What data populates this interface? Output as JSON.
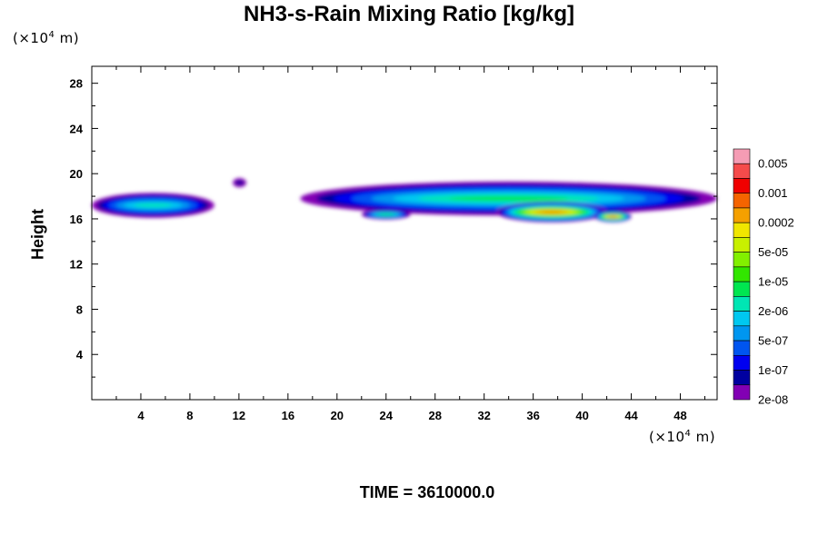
{
  "chart_data": {
    "type": "heatmap",
    "title": "NH3-s-Rain Mixing Ratio [kg/kg]",
    "ylabel": "Height",
    "xlabel": "",
    "y_unit": "(×10",
    "x_unit": "(×10",
    "unit_exp": "4",
    "unit_tail": " m)",
    "time_label": "TIME = 3610000.0",
    "xlim": [
      0,
      51
    ],
    "ylim": [
      0,
      29.5
    ],
    "x_ticks": [
      4,
      8,
      12,
      16,
      20,
      24,
      28,
      32,
      36,
      40,
      44,
      48
    ],
    "y_ticks": [
      4,
      8,
      12,
      16,
      20,
      24,
      28
    ],
    "x_tick_labels": [
      "4",
      "8",
      "12",
      "16",
      "20",
      "24",
      "28",
      "32",
      "36",
      "40",
      "44",
      "48"
    ],
    "y_tick_labels": [
      "4",
      "8",
      "12",
      "16",
      "20",
      "24",
      "28"
    ],
    "colorbar": {
      "colors": [
        "#f59cb4",
        "#f54b4b",
        "#f00000",
        "#f56400",
        "#f5a000",
        "#f0e600",
        "#c8f000",
        "#82f000",
        "#32e600",
        "#00e650",
        "#00e6b4",
        "#00c8f0",
        "#0096f0",
        "#0055f0",
        "#0000f0",
        "#0000a0",
        "#8200b4"
      ],
      "labels": [
        "0.005",
        "0.001",
        "0.0002",
        "5e-05",
        "1e-05",
        "2e-06",
        "5e-07",
        "1e-07",
        "2e-08"
      ]
    },
    "blobs": [
      {
        "x0": 0,
        "x1": 10,
        "yc": 17.2,
        "h": 2.2,
        "peak": 10
      },
      {
        "x0": 11.5,
        "x1": 12.6,
        "yc": 19.2,
        "h": 0.8,
        "peak": 15
      },
      {
        "x0": 17,
        "x1": 51,
        "yc": 17.8,
        "h": 3.0,
        "peak": 9
      },
      {
        "x0": 33,
        "x1": 42,
        "yc": 16.6,
        "h": 1.8,
        "peak": 3
      },
      {
        "x0": 41,
        "x1": 44,
        "yc": 16.2,
        "h": 1.0,
        "peak": 3
      },
      {
        "x0": 22,
        "x1": 26,
        "yc": 16.4,
        "h": 0.9,
        "peak": 9
      }
    ]
  }
}
